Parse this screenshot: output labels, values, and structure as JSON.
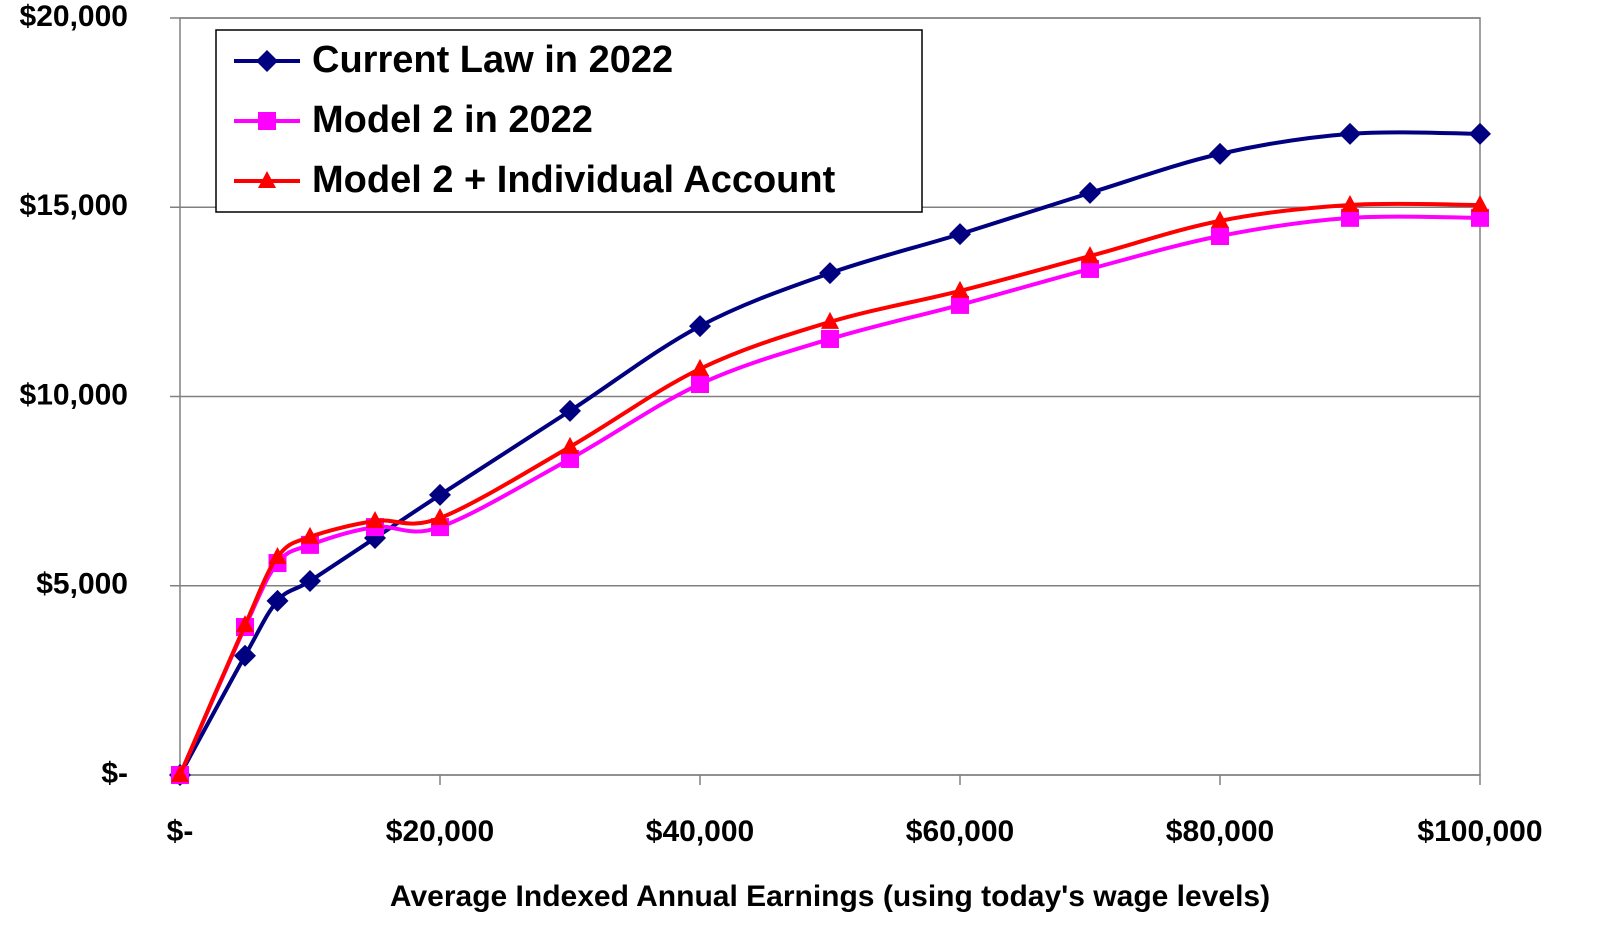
{
  "chart_data": {
    "type": "line",
    "x_label": "Average Indexed Annual Earnings (using today's wage levels)",
    "x": [
      0,
      5000,
      7500,
      10000,
      15000,
      20000,
      30000,
      40000,
      50000,
      60000,
      70000,
      80000,
      90000,
      100000
    ],
    "series": [
      {
        "name": "Current Law in 2022",
        "color": "#000080",
        "marker": "diamond",
        "values": [
          0,
          3150,
          4600,
          5125,
          6260,
          7400,
          9620,
          11860,
          13260,
          14290,
          15380,
          16410,
          16940,
          16940
        ]
      },
      {
        "name": "Model 2 in 2022",
        "color": "#ff00ff",
        "marker": "square",
        "values": [
          0,
          3910,
          5600,
          6080,
          6550,
          6550,
          8350,
          10330,
          11520,
          12420,
          13370,
          14240,
          14720,
          14720
        ]
      },
      {
        "name": "Model 2 + Individual Account",
        "color": "#ff0000",
        "marker": "triangle",
        "values": [
          0,
          3960,
          5760,
          6290,
          6710,
          6790,
          8670,
          10730,
          11970,
          12790,
          13710,
          14640,
          15060,
          15060
        ]
      }
    ],
    "xlim": [
      0,
      100000
    ],
    "xticks": [
      {
        "value": 0,
        "label": "$-"
      },
      {
        "value": 20000,
        "label": "$20,000"
      },
      {
        "value": 40000,
        "label": "$40,000"
      },
      {
        "value": 60000,
        "label": "$60,000"
      },
      {
        "value": 80000,
        "label": "$80,000"
      },
      {
        "value": 100000,
        "label": "$100,000"
      }
    ],
    "ylim": [
      0,
      20000
    ],
    "yticks": [
      {
        "value": 0,
        "label": "$-"
      },
      {
        "value": 5000,
        "label": "$5,000"
      },
      {
        "value": 10000,
        "label": "$10,000"
      },
      {
        "value": 15000,
        "label": "$15,000"
      },
      {
        "value": 20000,
        "label": "$20,000"
      }
    ],
    "grid": true,
    "legend_position": "upper-left"
  }
}
